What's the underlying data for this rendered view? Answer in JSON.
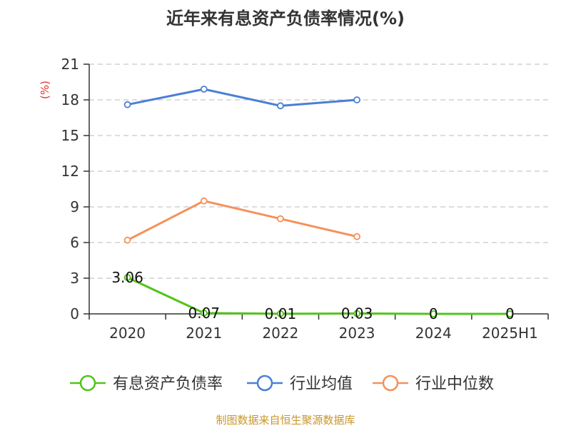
{
  "chart_data": {
    "type": "line",
    "title": "近年来有息资产负债率情况(%)",
    "y_unit_label": "(%)",
    "categories": [
      "2020",
      "2021",
      "2022",
      "2023",
      "2024",
      "2025H1"
    ],
    "ylim": [
      0,
      21
    ],
    "y_ticks": [
      "0",
      "3",
      "6",
      "9",
      "12",
      "15",
      "18",
      "21"
    ],
    "grid": true,
    "legend_position": "bottom",
    "series": [
      {
        "name": "有息资产负债率",
        "color": "#52c41a",
        "values": [
          3.06,
          0.07,
          0.01,
          0.03,
          0,
          0
        ],
        "labels": [
          "3.06",
          "0.07",
          "0.01",
          "0.03",
          "0",
          "0"
        ]
      },
      {
        "name": "行业均值",
        "color": "#4a7fd6",
        "values": [
          17.6,
          18.9,
          17.5,
          18.0,
          null,
          null
        ]
      },
      {
        "name": "行业中位数",
        "color": "#f5915a",
        "values": [
          6.2,
          9.5,
          8.0,
          6.5,
          null,
          null
        ]
      }
    ],
    "source": "制图数据来自恒生聚源数据库"
  }
}
